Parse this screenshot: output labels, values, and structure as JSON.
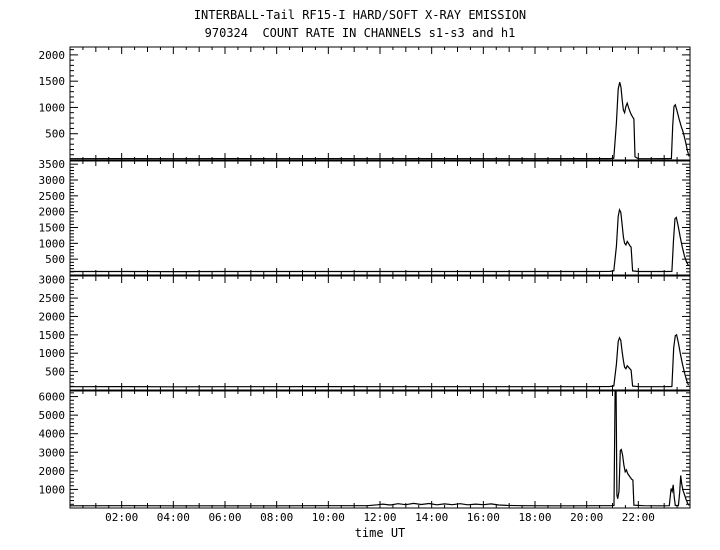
{
  "chart_data": {
    "type": "line",
    "title": "INTERBALL-Tail RF15-I HARD/SOFT X-RAY EMISSION",
    "subtitle": "970324  COUNT RATE IN CHANNELS s1-s3 and h1",
    "xlabel": "time UT",
    "line_color": "#000000",
    "x_range_hours": [
      0,
      24
    ],
    "x_major_ticks": [
      2,
      4,
      6,
      8,
      10,
      12,
      14,
      16,
      18,
      20,
      22
    ],
    "x_tick_labels": [
      "02:00",
      "04:00",
      "06:00",
      "08:00",
      "10:00",
      "12:00",
      "14:00",
      "16:00",
      "18:00",
      "20:00",
      "22:00"
    ],
    "panels": [
      {
        "name": "s1",
        "ylim": [
          0,
          2150
        ],
        "yticks": [
          500,
          1000,
          1500,
          2000
        ],
        "major_step": 500,
        "minor_step": 100,
        "points": [
          [
            0,
            25
          ],
          [
            2,
            26
          ],
          [
            4,
            24
          ],
          [
            6,
            26
          ],
          [
            8,
            25
          ],
          [
            10,
            26
          ],
          [
            12,
            25
          ],
          [
            14,
            26
          ],
          [
            16,
            25
          ],
          [
            18,
            25
          ],
          [
            20,
            26
          ],
          [
            20.9,
            27
          ],
          [
            21.05,
            35
          ],
          [
            21.15,
            700
          ],
          [
            21.22,
            1350
          ],
          [
            21.28,
            1480
          ],
          [
            21.33,
            1380
          ],
          [
            21.38,
            1120
          ],
          [
            21.42,
            950
          ],
          [
            21.47,
            900
          ],
          [
            21.52,
            1020
          ],
          [
            21.57,
            1080
          ],
          [
            21.62,
            1000
          ],
          [
            21.67,
            930
          ],
          [
            21.72,
            870
          ],
          [
            21.78,
            820
          ],
          [
            21.83,
            780
          ],
          [
            21.87,
            60
          ],
          [
            22.0,
            27
          ],
          [
            22.5,
            25
          ],
          [
            23.0,
            26
          ],
          [
            23.28,
            28
          ],
          [
            23.33,
            650
          ],
          [
            23.38,
            1020
          ],
          [
            23.43,
            1050
          ],
          [
            23.5,
            930
          ],
          [
            23.58,
            780
          ],
          [
            23.66,
            640
          ],
          [
            23.74,
            520
          ],
          [
            23.82,
            360
          ],
          [
            23.9,
            180
          ],
          [
            23.96,
            70
          ]
        ]
      },
      {
        "name": "s2",
        "ylim": [
          0,
          3600
        ],
        "yticks": [
          500,
          1000,
          1500,
          2000,
          2500,
          3000,
          3500
        ],
        "major_step": 500,
        "minor_step": 100,
        "points": [
          [
            0,
            110
          ],
          [
            2,
            112
          ],
          [
            4,
            108
          ],
          [
            6,
            112
          ],
          [
            8,
            110
          ],
          [
            10,
            112
          ],
          [
            12,
            109
          ],
          [
            14,
            112
          ],
          [
            16,
            110
          ],
          [
            18,
            110
          ],
          [
            20,
            112
          ],
          [
            20.9,
            115
          ],
          [
            21.05,
            130
          ],
          [
            21.15,
            900
          ],
          [
            21.22,
            1850
          ],
          [
            21.27,
            2060
          ],
          [
            21.32,
            1980
          ],
          [
            21.37,
            1600
          ],
          [
            21.42,
            1200
          ],
          [
            21.47,
            1000
          ],
          [
            21.52,
            950
          ],
          [
            21.57,
            1060
          ],
          [
            21.62,
            1000
          ],
          [
            21.67,
            930
          ],
          [
            21.72,
            880
          ],
          [
            21.78,
            130
          ],
          [
            22.0,
            112
          ],
          [
            22.5,
            110
          ],
          [
            23.0,
            111
          ],
          [
            23.3,
            115
          ],
          [
            23.36,
            1100
          ],
          [
            23.42,
            1780
          ],
          [
            23.47,
            1820
          ],
          [
            23.54,
            1560
          ],
          [
            23.62,
            1200
          ],
          [
            23.7,
            880
          ],
          [
            23.78,
            620
          ],
          [
            23.86,
            420
          ],
          [
            23.94,
            300
          ]
        ]
      },
      {
        "name": "s3",
        "ylim": [
          0,
          3100
        ],
        "yticks": [
          500,
          1000,
          1500,
          2000,
          2500,
          3000
        ],
        "major_step": 500,
        "minor_step": 100,
        "points": [
          [
            0,
            90
          ],
          [
            2,
            92
          ],
          [
            4,
            88
          ],
          [
            6,
            91
          ],
          [
            8,
            90
          ],
          [
            10,
            92
          ],
          [
            12,
            89
          ],
          [
            14,
            91
          ],
          [
            16,
            90
          ],
          [
            18,
            90
          ],
          [
            20,
            91
          ],
          [
            20.9,
            95
          ],
          [
            21.05,
            110
          ],
          [
            21.15,
            700
          ],
          [
            21.22,
            1320
          ],
          [
            21.27,
            1420
          ],
          [
            21.32,
            1350
          ],
          [
            21.37,
            1050
          ],
          [
            21.42,
            800
          ],
          [
            21.47,
            620
          ],
          [
            21.52,
            580
          ],
          [
            21.57,
            660
          ],
          [
            21.62,
            620
          ],
          [
            21.67,
            580
          ],
          [
            21.72,
            540
          ],
          [
            21.78,
            105
          ],
          [
            22.0,
            92
          ],
          [
            22.5,
            90
          ],
          [
            23.0,
            91
          ],
          [
            23.3,
            95
          ],
          [
            23.37,
            1150
          ],
          [
            23.43,
            1480
          ],
          [
            23.48,
            1500
          ],
          [
            23.55,
            1280
          ],
          [
            23.63,
            980
          ],
          [
            23.71,
            700
          ],
          [
            23.79,
            460
          ],
          [
            23.87,
            260
          ],
          [
            23.94,
            130
          ]
        ]
      },
      {
        "name": "h1",
        "ylim": [
          0,
          6300
        ],
        "yticks": [
          1000,
          2000,
          3000,
          4000,
          5000,
          6000
        ],
        "major_step": 1000,
        "minor_step": 200,
        "points": [
          [
            0,
            120
          ],
          [
            2,
            122
          ],
          [
            4,
            118
          ],
          [
            6,
            121
          ],
          [
            8,
            120
          ],
          [
            10,
            122
          ],
          [
            11.5,
            125
          ],
          [
            11.9,
            170
          ],
          [
            12.1,
            210
          ],
          [
            12.4,
            160
          ],
          [
            12.7,
            230
          ],
          [
            13.0,
            180
          ],
          [
            13.3,
            250
          ],
          [
            13.6,
            190
          ],
          [
            13.9,
            240
          ],
          [
            14.2,
            170
          ],
          [
            14.5,
            220
          ],
          [
            14.8,
            180
          ],
          [
            15.1,
            230
          ],
          [
            15.4,
            170
          ],
          [
            15.7,
            210
          ],
          [
            16.0,
            180
          ],
          [
            16.3,
            220
          ],
          [
            16.6,
            160
          ],
          [
            16.9,
            140
          ],
          [
            17.5,
            125
          ],
          [
            18.5,
            121
          ],
          [
            19.5,
            120
          ],
          [
            20.5,
            122
          ],
          [
            20.95,
            125
          ],
          [
            21.06,
            135
          ],
          [
            21.1,
            6250
          ],
          [
            21.14,
            6250
          ],
          [
            21.17,
            700
          ],
          [
            21.2,
            500
          ],
          [
            21.25,
            900
          ],
          [
            21.3,
            3100
          ],
          [
            21.34,
            3150
          ],
          [
            21.39,
            2850
          ],
          [
            21.44,
            2300
          ],
          [
            21.49,
            1950
          ],
          [
            21.54,
            2050
          ],
          [
            21.59,
            1850
          ],
          [
            21.64,
            1750
          ],
          [
            21.69,
            1650
          ],
          [
            21.74,
            1550
          ],
          [
            21.79,
            1500
          ],
          [
            21.83,
            150
          ],
          [
            22.2,
            124
          ],
          [
            22.8,
            121
          ],
          [
            23.2,
            122
          ],
          [
            23.27,
            1050
          ],
          [
            23.31,
            900
          ],
          [
            23.35,
            1250
          ],
          [
            23.39,
            600
          ],
          [
            23.43,
            140
          ],
          [
            23.55,
            130
          ],
          [
            23.6,
            850
          ],
          [
            23.64,
            1750
          ],
          [
            23.68,
            1300
          ],
          [
            23.73,
            950
          ],
          [
            23.79,
            700
          ],
          [
            23.85,
            450
          ],
          [
            23.92,
            220
          ],
          [
            23.97,
            140
          ]
        ]
      }
    ]
  }
}
